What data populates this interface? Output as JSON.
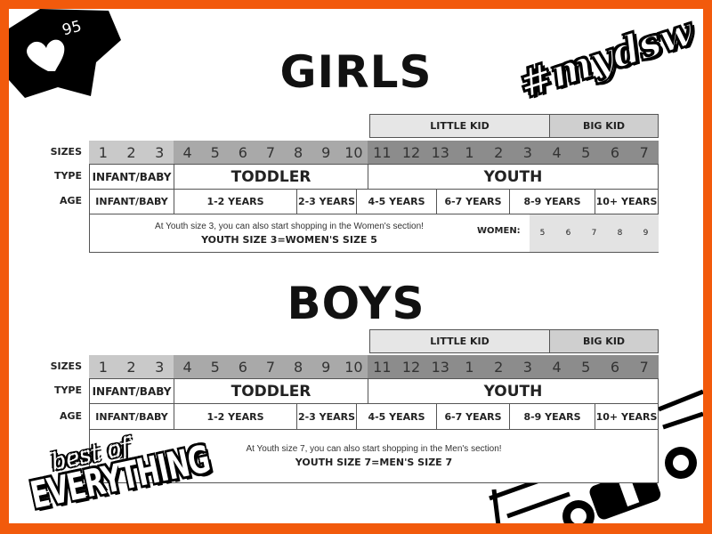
{
  "likes": {
    "count": "95",
    "icon": "heart-icon"
  },
  "logos": {
    "hashtag": "#mydsw",
    "tagline_top": "best of",
    "tagline_bottom": "EVERYTHING"
  },
  "colors": {
    "border": "#f25a0c",
    "infant_sizes": "#c9c9c9",
    "toddler_sizes": "#a9a9a9",
    "youth_sizes": "#8c8c8c"
  },
  "labels": {
    "sizes": "SIZES",
    "type": "TYPE",
    "age": "AGE"
  },
  "girls": {
    "title": "GIRLS",
    "groups": {
      "little_kid": "LITTLE KID",
      "big_kid": "BIG KID"
    },
    "sizes": {
      "infant": [
        "1",
        "2",
        "3"
      ],
      "toddler": [
        "4",
        "5",
        "6",
        "7",
        "8",
        "9",
        "10"
      ],
      "youth": [
        "11",
        "12",
        "13",
        "1",
        "2",
        "3",
        "4",
        "5",
        "6",
        "7"
      ]
    },
    "types": {
      "infant": "INFANT/BABY",
      "toddler": "TODDLER",
      "youth": "YOUTH"
    },
    "ages": [
      "INFANT/BABY",
      "1-2 YEARS",
      "2-3 YEARS",
      "4-5 YEARS",
      "6-7 YEARS",
      "8-9 YEARS",
      "10+ YEARS"
    ],
    "note": "At Youth size 3, you can also start shopping in the Women's section!",
    "note_bold": "YOUTH SIZE 3=WOMEN'S SIZE 5",
    "women_label": "WOMEN:",
    "women_sizes": [
      "5",
      "6",
      "7",
      "8",
      "9"
    ]
  },
  "boys": {
    "title": "BOYS",
    "groups": {
      "little_kid": "LITTLE KID",
      "big_kid": "BIG KID"
    },
    "sizes": {
      "infant": [
        "1",
        "2",
        "3"
      ],
      "toddler": [
        "4",
        "5",
        "6",
        "7",
        "8",
        "9",
        "10"
      ],
      "youth": [
        "11",
        "12",
        "13",
        "1",
        "2",
        "3",
        "4",
        "5",
        "6",
        "7"
      ]
    },
    "types": {
      "infant": "INFANT/BABY",
      "toddler": "TODDLER",
      "youth": "YOUTH"
    },
    "ages": [
      "INFANT/BABY",
      "1-2 YEARS",
      "2-3 YEARS",
      "4-5 YEARS",
      "6-7 YEARS",
      "8-9 YEARS",
      "10+ YEARS"
    ],
    "note": "At Youth size 7, you can also start shopping in the Men's section!",
    "note_bold": "YOUTH SIZE 7=MEN'S SIZE 7"
  }
}
